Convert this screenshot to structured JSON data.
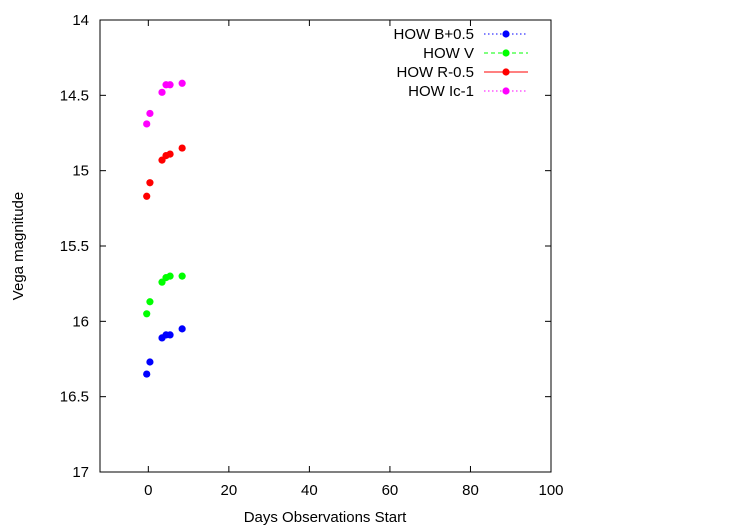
{
  "chart_data": {
    "type": "scatter",
    "title": "",
    "xlabel": "Days Observations Start",
    "ylabel": "Vega magnitude",
    "xlim": [
      -12,
      100
    ],
    "ylim": [
      14,
      17
    ],
    "y_inverted": true,
    "x_ticks": [
      0,
      20,
      40,
      60,
      80,
      100
    ],
    "x_tick_labels": [
      "0",
      "20",
      "40",
      "60",
      "80",
      "100"
    ],
    "y_ticks": [
      14,
      14.5,
      15,
      15.5,
      16,
      16.5,
      17
    ],
    "y_tick_labels": [
      "14",
      "14.5",
      "15",
      "15.5",
      "16",
      "16.5",
      "17"
    ],
    "grid": false,
    "legend_position": "top-right",
    "series": [
      {
        "name": "HOW B+0.5",
        "color": "#0000ff",
        "line_style": "dotted",
        "points": [
          [
            -0.4,
            16.35
          ],
          [
            0.4,
            16.27
          ],
          [
            3.4,
            16.11
          ],
          [
            4.4,
            16.09
          ],
          [
            5.4,
            16.09
          ],
          [
            8.4,
            16.05
          ]
        ]
      },
      {
        "name": "HOW V",
        "color": "#00ff00",
        "line_style": "dashed",
        "points": [
          [
            -0.4,
            15.95
          ],
          [
            0.4,
            15.87
          ],
          [
            3.4,
            15.74
          ],
          [
            4.4,
            15.71
          ],
          [
            5.4,
            15.7
          ],
          [
            8.4,
            15.7
          ]
        ]
      },
      {
        "name": "HOW R-0.5",
        "color": "#ff0000",
        "line_style": "solid",
        "points": [
          [
            -0.4,
            15.17
          ],
          [
            0.4,
            15.08
          ],
          [
            3.4,
            14.93
          ],
          [
            4.4,
            14.9
          ],
          [
            5.4,
            14.89
          ],
          [
            8.4,
            14.85
          ]
        ]
      },
      {
        "name": "HOW Ic-1",
        "color": "#ff00ff",
        "line_style": "dotted",
        "points": [
          [
            -0.4,
            14.69
          ],
          [
            0.4,
            14.62
          ],
          [
            3.4,
            14.48
          ],
          [
            4.4,
            14.43
          ],
          [
            5.4,
            14.43
          ],
          [
            8.4,
            14.42
          ]
        ]
      }
    ]
  }
}
